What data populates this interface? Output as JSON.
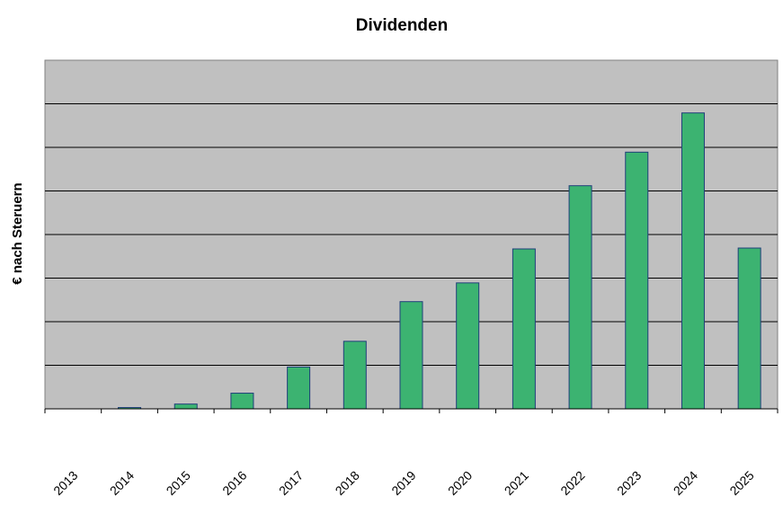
{
  "chart_data": {
    "type": "bar",
    "title": "Dividenden",
    "xlabel": "",
    "ylabel": "€ nach Steruern",
    "categories": [
      "2013",
      "2014",
      "2015",
      "2016",
      "2017",
      "2018",
      "2019",
      "2020",
      "2021",
      "2022",
      "2023",
      "2024",
      "2025"
    ],
    "values": [
      0,
      0.3,
      1.1,
      3.6,
      9.6,
      15.5,
      24.6,
      28.9,
      36.7,
      51.2,
      58.9,
      67.9,
      36.9
    ],
    "ylim": [
      0,
      80
    ],
    "grid": true,
    "legend": "none",
    "colors": {
      "plot_background": "#c0c0c0",
      "bar_fill": "#3cb371",
      "bar_stroke": "#1f3f7a",
      "gridline": "#000000"
    }
  }
}
